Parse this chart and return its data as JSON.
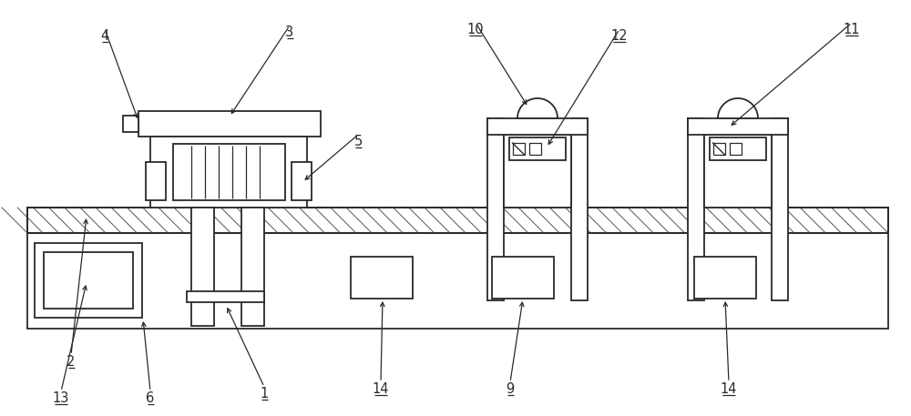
{
  "bg_color": "#ffffff",
  "line_color": "#2a2a2a",
  "fig_width": 10.0,
  "fig_height": 4.57,
  "dpi": 100,
  "xlim": [
    0,
    1000
  ],
  "ylim": [
    0,
    457
  ]
}
